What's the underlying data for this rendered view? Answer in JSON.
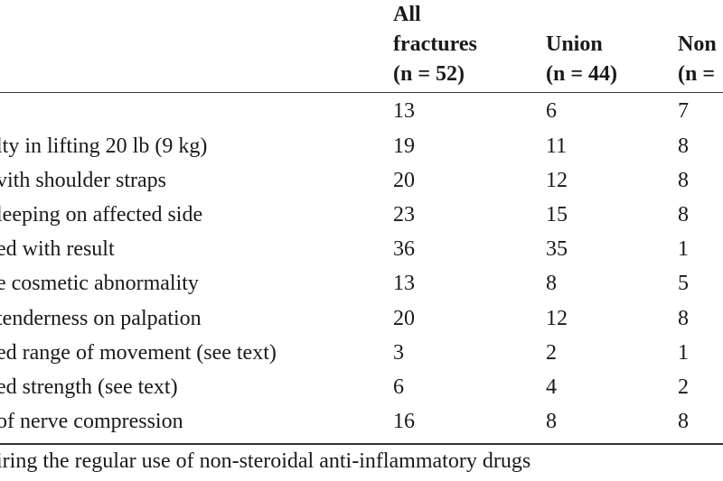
{
  "table": {
    "columns": [
      {
        "lines": [
          "All",
          "fractures",
          "(n = 52)"
        ]
      },
      {
        "lines": [
          "Union",
          "(n = 44)"
        ]
      },
      {
        "lines": [
          "Non",
          "(n ="
        ]
      }
    ],
    "rows": [
      {
        "label": "",
        "all": "13",
        "union": "6",
        "non": "7"
      },
      {
        "label": "lty in lifting 20 lb (9 kg)",
        "all": "19",
        "union": "11",
        "non": "8"
      },
      {
        "label": "vith shoulder straps",
        "all": "20",
        "union": "12",
        "non": "8"
      },
      {
        "label": "leeping on affected side",
        "all": "23",
        "union": "15",
        "non": "8"
      },
      {
        "label": "ed with result",
        "all": "36",
        "union": "35",
        "non": "1"
      },
      {
        "label": "e cosmetic abnormality",
        "all": "13",
        "union": "8",
        "non": "5"
      },
      {
        "label": "tenderness on palpation",
        "all": "20",
        "union": "12",
        "non": "8"
      },
      {
        "label": "ed range of movement (see text)",
        "all": "3",
        "union": "2",
        "non": "1"
      },
      {
        "label": "ed strength (see text)",
        "all": "6",
        "union": "4",
        "non": "2"
      },
      {
        "label": "of nerve compression",
        "all": "16",
        "union": "8",
        "non": "8"
      }
    ],
    "footnote": "iring the regular use of non-steroidal anti-inflammatory drugs"
  }
}
